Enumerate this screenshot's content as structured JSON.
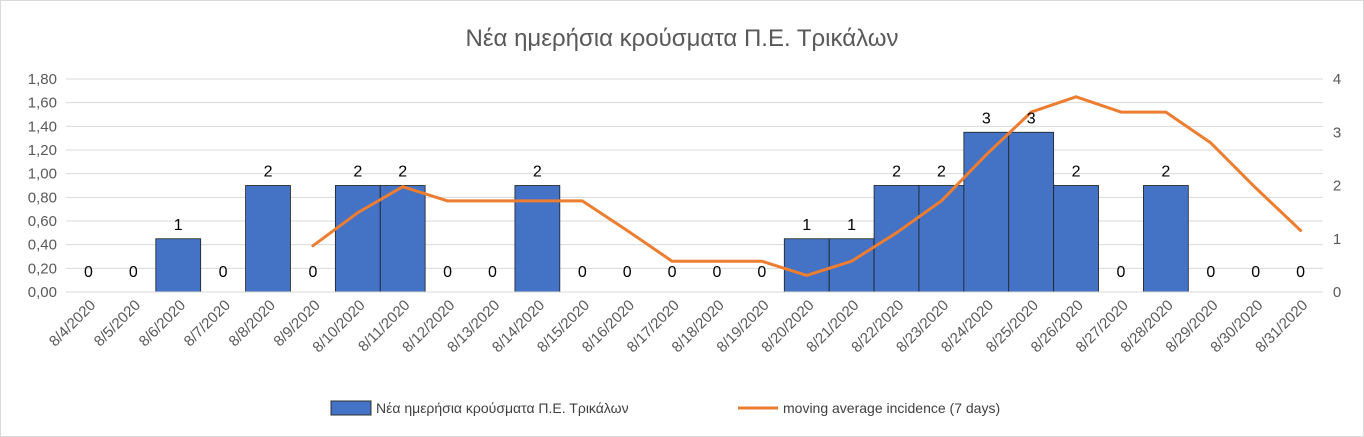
{
  "chart_data": {
    "type": "bar+line",
    "title": "Νέα ημερήσια κρούσματα Π.Ε. Τρικάλων",
    "categories": [
      "8/4/2020",
      "8/5/2020",
      "8/6/2020",
      "8/7/2020",
      "8/8/2020",
      "8/9/2020",
      "8/10/2020",
      "8/11/2020",
      "8/12/2020",
      "8/13/2020",
      "8/14/2020",
      "8/15/2020",
      "8/16/2020",
      "8/17/2020",
      "8/18/2020",
      "8/19/2020",
      "8/20/2020",
      "8/21/2020",
      "8/22/2020",
      "8/23/2020",
      "8/24/2020",
      "8/25/2020",
      "8/26/2020",
      "8/27/2020",
      "8/28/2020",
      "8/29/2020",
      "8/30/2020",
      "8/31/2020"
    ],
    "series": [
      {
        "name": "Νέα ημερήσια κρούσματα Π.Ε. Τρικάλων",
        "type": "bar",
        "axis": "right",
        "color": "#4472c4",
        "values": [
          0,
          0,
          1,
          0,
          2,
          0,
          2,
          2,
          0,
          0,
          2,
          0,
          0,
          0,
          0,
          0,
          1,
          1,
          2,
          2,
          3,
          3,
          2,
          0,
          2,
          0,
          0,
          0
        ],
        "data_labels": [
          "0",
          "0",
          "1",
          "0",
          "2",
          "0",
          "2",
          "2",
          "0",
          "0",
          "2",
          "0",
          "0",
          "0",
          "0",
          "0",
          "1",
          "1",
          "2",
          "2",
          "3",
          "3",
          "2",
          "0",
          "2",
          "0",
          "0",
          "0"
        ]
      },
      {
        "name": "moving average incidence (7 days)",
        "type": "line",
        "axis": "left",
        "color": "#ed7d31",
        "values": [
          null,
          null,
          null,
          null,
          null,
          0.39,
          0.67,
          0.89,
          0.77,
          0.77,
          0.77,
          0.77,
          0.52,
          0.26,
          0.26,
          0.26,
          0.14,
          0.26,
          0.5,
          0.77,
          1.16,
          1.52,
          1.65,
          1.52,
          1.52,
          1.26,
          0.88,
          0.52
        ]
      }
    ],
    "y_left": {
      "min": 0,
      "max": 1.8,
      "step": 0.2,
      "tick_labels": [
        "0,00",
        "0,20",
        "0,40",
        "0,60",
        "0,80",
        "1,00",
        "1,20",
        "1,40",
        "1,60",
        "1,80"
      ]
    },
    "y_right": {
      "min": 0,
      "max": 4,
      "step": 1,
      "tick_labels": [
        "0",
        "1",
        "2",
        "3",
        "4"
      ]
    },
    "grid": true,
    "legend_position": "bottom",
    "colors": {
      "bar": "#4472c4",
      "line": "#ed7d31",
      "grid": "#d9d9d9",
      "text": "#595959"
    }
  }
}
